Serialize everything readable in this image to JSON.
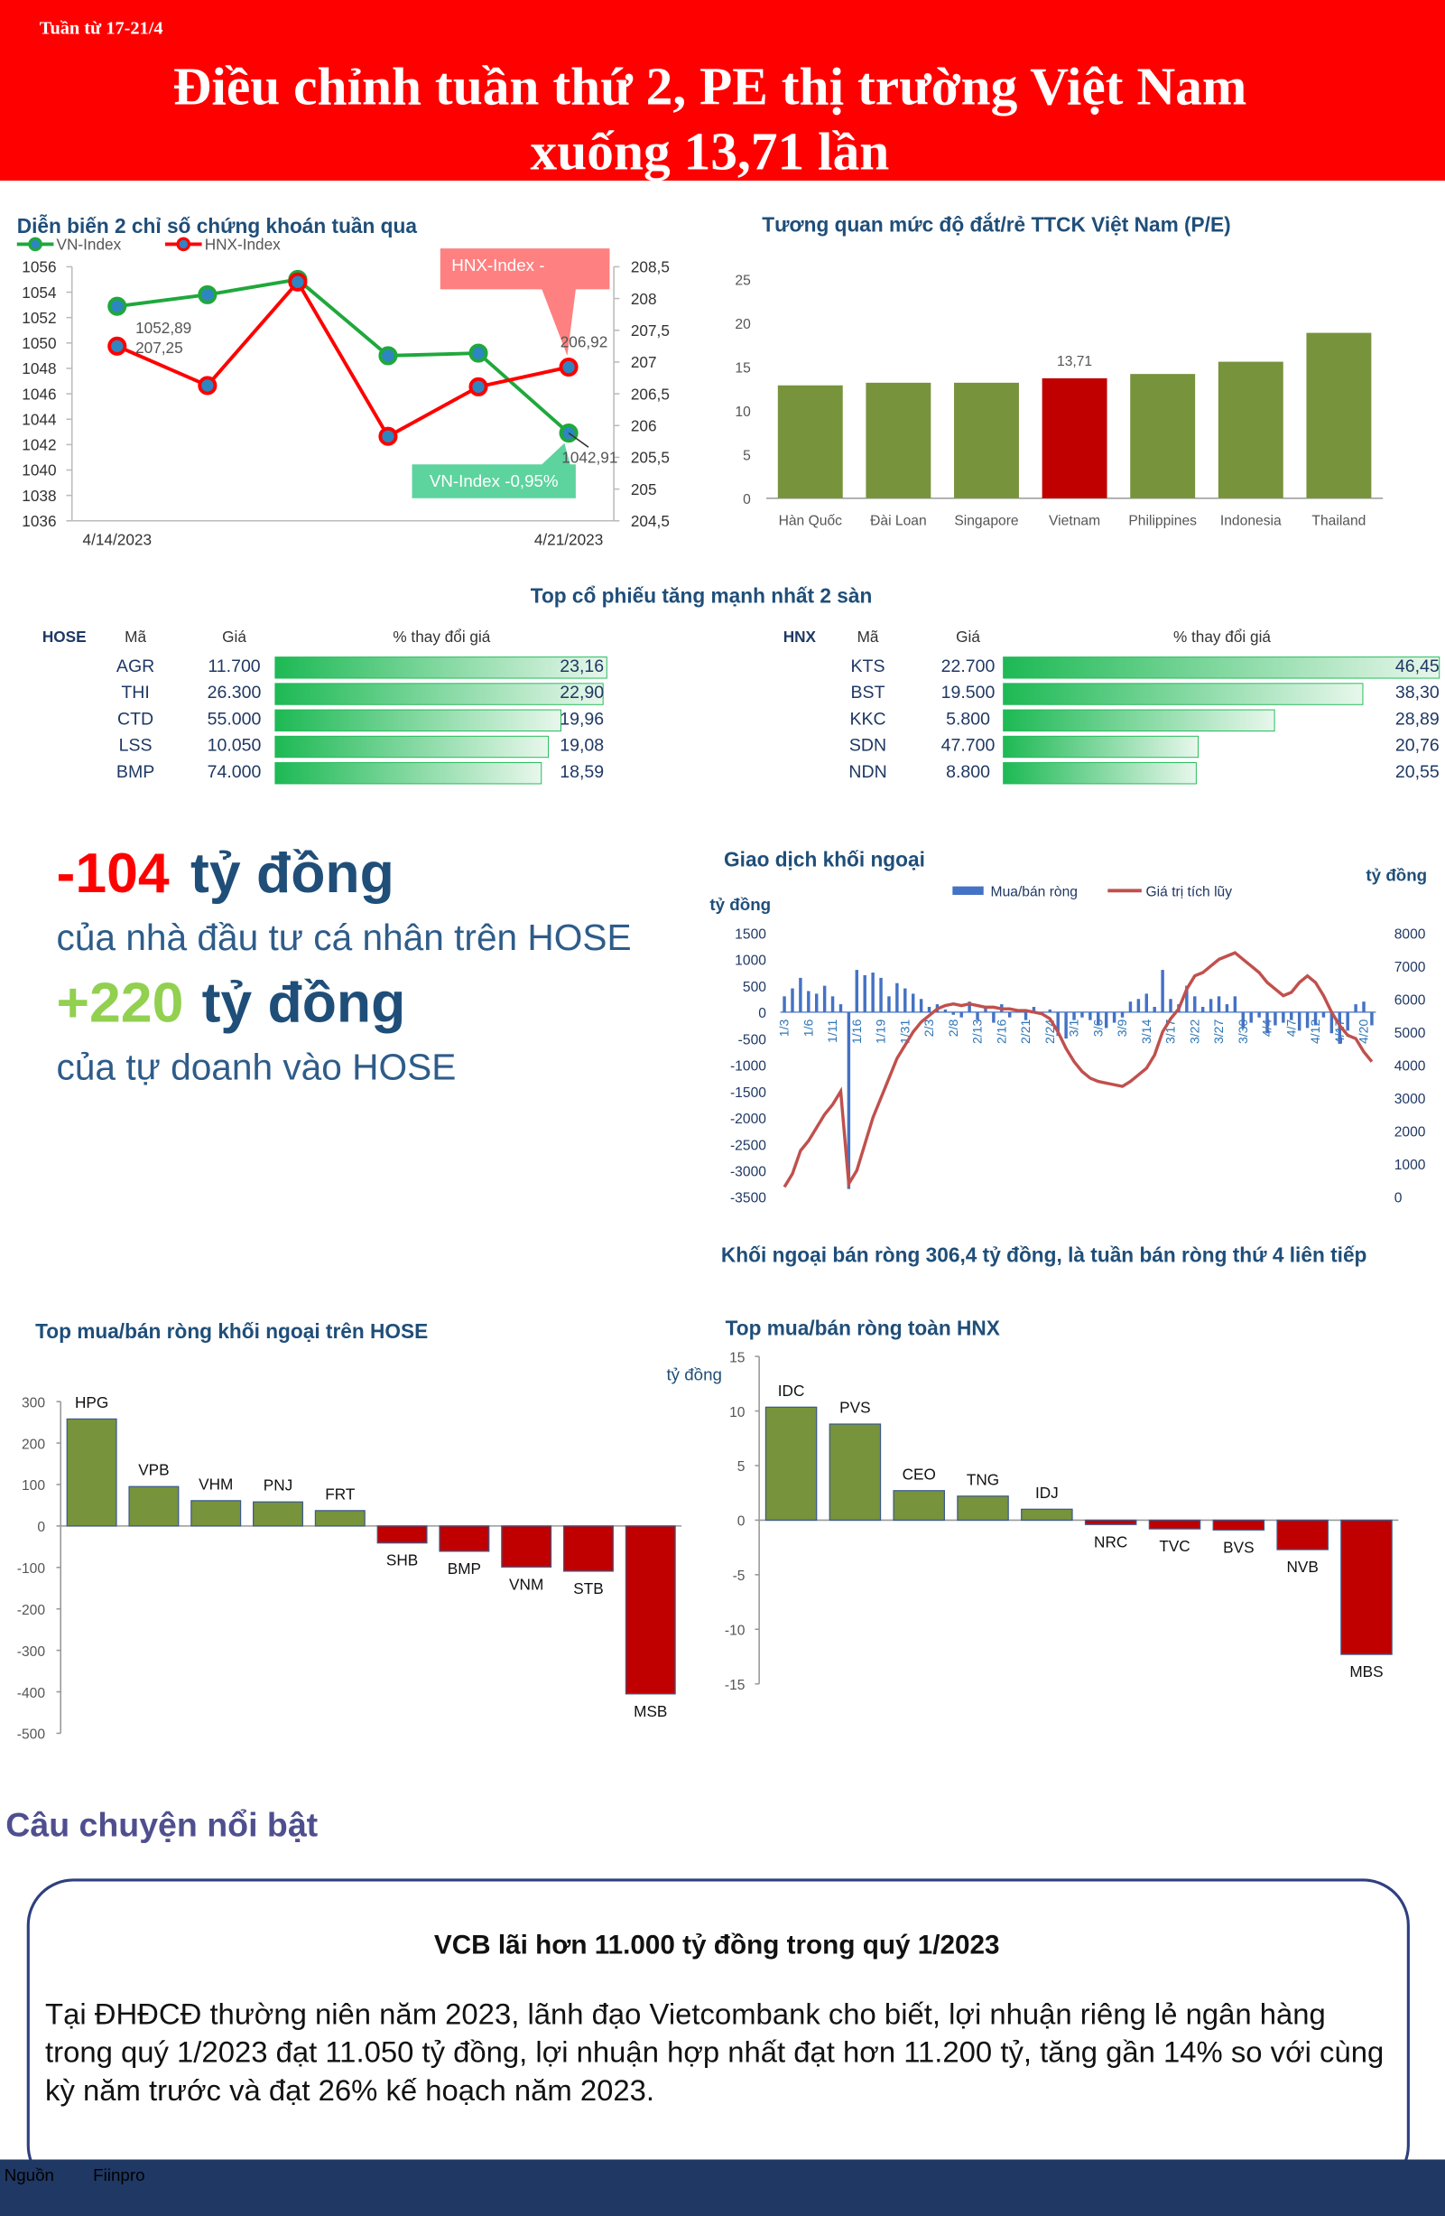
{
  "header": {
    "week": "Tuần từ 17-21/4",
    "title_lines": [
      "Điều chỉnh tuần thứ 2, PE thị trường Việt Nam",
      "xuống 13,71 lần"
    ]
  },
  "tables_title": "Top cổ phiếu tăng mạnh nhất 2 sàn",
  "highlights": [
    {
      "figure": "-104",
      "unit": "tỷ đồng",
      "text": "của nhà đầu tư cá nhân trên HOSE"
    },
    {
      "figure": "+220",
      "unit": "tỷ đồng",
      "text": "của tự doanh vào HOSE"
    }
  ],
  "chart_data": [
    {
      "type": "line",
      "title": "Diễn biến 2 chỉ số chứng khoán tuần qua",
      "categories": [
        "4/14/2023",
        null,
        null,
        null,
        null,
        "4/21/2023"
      ],
      "series": [
        {
          "name": "VN-Index",
          "color": "#1fa83c",
          "values": [
            1052.89,
            1053.8,
            1055.0,
            1049.0,
            1049.2,
            1042.91
          ],
          "value_labels": [
            "1052,89",
            null,
            null,
            null,
            null,
            "1042,91"
          ]
        },
        {
          "name": "HNX-Index",
          "color": "#ff0000",
          "axis": "y2",
          "values": [
            207.25,
            206.63,
            208.26,
            205.83,
            206.61,
            206.92
          ],
          "value_labels": [
            "207,25",
            null,
            null,
            null,
            null,
            "206,92"
          ]
        }
      ],
      "ylim": [
        1036,
        1056
      ],
      "yticks": [
        1036,
        1038,
        1040,
        1042,
        1044,
        1046,
        1048,
        1050,
        1052,
        1054,
        1056
      ],
      "y2lim": [
        204.5,
        208.5
      ],
      "y2ticks": [
        {
          "value": 204.5,
          "label": "204,5"
        },
        {
          "value": 205,
          "label": "205"
        },
        {
          "value": 205.5,
          "label": "205,5"
        },
        {
          "value": 206,
          "label": "206"
        },
        {
          "value": 206.5,
          "label": "206,5"
        },
        {
          "value": 207,
          "label": "207"
        },
        {
          "value": 207.5,
          "label": "207,5"
        },
        {
          "value": 208,
          "label": "208"
        },
        {
          "value": 208.5,
          "label": "208,5"
        }
      ],
      "annotations": [
        "HNX-Index -",
        "VN-Index -0,95%"
      ],
      "legend": "top-left"
    },
    {
      "type": "bar",
      "title": "Tương quan mức độ đắt/rẻ TTCK Việt Nam (P/E)",
      "categories": [
        "Hàn Quốc",
        "Đài Loan",
        "Singapore",
        "Vietnam",
        "Philippines",
        "Indonesia",
        "Thailand"
      ],
      "values": [
        12.9,
        13.2,
        13.2,
        13.71,
        14.2,
        15.6,
        18.9
      ],
      "value_labels": [
        null,
        null,
        null,
        "13,71",
        null,
        null,
        null
      ],
      "colors": [
        "#77933c",
        "#77933c",
        "#77933c",
        "#c00000",
        "#77933c",
        "#77933c",
        "#77933c"
      ],
      "ylim": [
        0,
        25
      ],
      "yticks": [
        0,
        5,
        10,
        15,
        20,
        25
      ]
    },
    {
      "type": "hbar",
      "exchange": "HOSE",
      "column_labels": [
        "Mã",
        "Giá",
        "% thay đổi giá"
      ],
      "categories": [
        "AGR",
        "THI",
        "CTD",
        "LSS",
        "BMP"
      ],
      "prices": [
        "11.700",
        "26.300",
        "55.000",
        "10.050",
        "74.000"
      ],
      "values": [
        23.16,
        22.9,
        19.96,
        19.08,
        18.59
      ],
      "value_labels": [
        "23,16",
        "22,90",
        "19,96",
        "19,08",
        "18,59"
      ],
      "color": "#1db954",
      "xlim": [
        0,
        23.16
      ]
    },
    {
      "type": "hbar",
      "exchange": "HNX",
      "column_labels": [
        "Mã",
        "Giá",
        "% thay đổi giá"
      ],
      "categories": [
        "KTS",
        "BST",
        "KKC",
        "SDN",
        "NDN"
      ],
      "prices": [
        "22.700",
        "19.500",
        "5.800",
        "47.700",
        "8.800"
      ],
      "values": [
        46.45,
        38.3,
        28.89,
        20.76,
        20.55
      ],
      "value_labels": [
        "46,45",
        "38,30",
        "28,89",
        "20,76",
        "20,55"
      ],
      "color": "#1db954",
      "xlim": [
        0,
        46.45
      ]
    },
    {
      "type": "bar_line",
      "title": "Giao dịch khối ngoại",
      "y_label": "tỷ đồng",
      "y2_label": "tỷ đồng",
      "caption": "Khối ngoại bán ròng 306,4 tỷ đồng, là tuần bán ròng thứ 4 liên tiếp",
      "categories": [
        "1/3",
        null,
        null,
        "1/6",
        null,
        null,
        "1/11",
        null,
        null,
        "1/16",
        null,
        null,
        "1/19",
        null,
        null,
        "1/31",
        null,
        null,
        "2/3",
        null,
        null,
        "2/8",
        null,
        null,
        "2/13",
        null,
        null,
        "2/16",
        null,
        null,
        "2/21",
        null,
        null,
        "2/24",
        null,
        null,
        "3/1",
        null,
        null,
        "3/6",
        null,
        null,
        "3/9",
        null,
        null,
        "3/14",
        null,
        null,
        "3/17",
        null,
        null,
        "3/22",
        null,
        null,
        "3/27",
        null,
        null,
        "3/30",
        null,
        null,
        "4/4",
        null,
        null,
        "4/7",
        null,
        null,
        "4/12",
        null,
        null,
        "4/17",
        null,
        null,
        "4/20",
        null
      ],
      "series": [
        {
          "name": "Mua/bán ròng",
          "color": "#4472c4",
          "values": [
            300,
            450,
            650,
            400,
            350,
            500,
            300,
            150,
            -3350,
            800,
            700,
            750,
            650,
            300,
            550,
            450,
            350,
            250,
            100,
            150,
            50,
            -50,
            -100,
            200,
            -150,
            100,
            -200,
            150,
            -100,
            50,
            -150,
            100,
            -50,
            50,
            -450,
            -500,
            -150,
            -100,
            -150,
            -250,
            -300,
            -200,
            -100,
            200,
            250,
            350,
            100,
            800,
            250,
            150,
            500,
            300,
            100,
            250,
            300,
            150,
            300,
            -300,
            -200,
            -100,
            -400,
            -250,
            -200,
            -150,
            -350,
            -300,
            -250,
            -100,
            -400,
            -600,
            -350,
            150,
            200,
            -250
          ]
        },
        {
          "name": "Giá trị tích lũy",
          "color": "#c0504d",
          "axis": "y2",
          "values": [
            300,
            700,
            1400,
            1700,
            2100,
            2500,
            2800,
            3200,
            400,
            800,
            1600,
            2400,
            3000,
            3600,
            4200,
            4600,
            5000,
            5300,
            5500,
            5700,
            5800,
            5850,
            5800,
            5850,
            5800,
            5750,
            5750,
            5700,
            5700,
            5650,
            5650,
            5600,
            5550,
            5400,
            5000,
            4500,
            4100,
            3800,
            3600,
            3500,
            3450,
            3400,
            3350,
            3500,
            3700,
            3900,
            4300,
            5000,
            5400,
            5700,
            6300,
            6700,
            6800,
            7000,
            7200,
            7300,
            7400,
            7200,
            7000,
            6800,
            6500,
            6300,
            6100,
            6200,
            6500,
            6700,
            6500,
            6100,
            5600,
            5200,
            4900,
            4800,
            4400,
            4100
          ]
        }
      ],
      "ylim": [
        -3500,
        1500
      ],
      "yticks": [
        -3500,
        -3000,
        -2500,
        -2000,
        -1500,
        -1000,
        -500,
        0,
        500,
        1000,
        1500
      ],
      "y2lim": [
        0,
        8000
      ],
      "y2ticks": [
        0,
        1000,
        2000,
        3000,
        4000,
        5000,
        6000,
        7000,
        8000
      ],
      "legend": "top"
    },
    {
      "type": "bar",
      "title": "Top mua/bán ròng khối ngoại trên HOSE",
      "y_label": "tỷ đồng",
      "categories": [
        "HPG",
        "VPB",
        "VHM",
        "PNJ",
        "FRT",
        "SHB",
        "BMP",
        "VNM",
        "STB",
        "MSB"
      ],
      "values": [
        258,
        95,
        61,
        58,
        37,
        -41,
        -61,
        -99,
        -109,
        -405
      ],
      "colors": [
        "#77933c",
        "#77933c",
        "#77933c",
        "#77933c",
        "#77933c",
        "#c00000",
        "#c00000",
        "#c00000",
        "#c00000",
        "#c00000"
      ],
      "ylim": [
        -500,
        300
      ],
      "yticks": [
        -500,
        -400,
        -300,
        -200,
        -100,
        0,
        100,
        200,
        300
      ]
    },
    {
      "type": "bar",
      "title": "Top mua/bán ròng toàn HNX",
      "categories": [
        "IDC",
        "PVS",
        "CEO",
        "TNG",
        "IDJ",
        "NRC",
        "TVC",
        "BVS",
        "NVB",
        "MBS"
      ],
      "values": [
        10.35,
        8.8,
        2.7,
        2.2,
        1.0,
        -0.4,
        -0.8,
        -0.9,
        -2.7,
        -12.3
      ],
      "colors": [
        "#77933c",
        "#77933c",
        "#77933c",
        "#77933c",
        "#77933c",
        "#c00000",
        "#c00000",
        "#c00000",
        "#c00000",
        "#c00000"
      ],
      "ylim": [
        -15,
        15
      ],
      "yticks": [
        -15,
        -10,
        -5,
        0,
        5,
        10,
        15
      ]
    }
  ],
  "story": {
    "heading": "Câu chuyện nổi bật",
    "title": "VCB lãi hơn 11.000 tỷ đồng trong quý 1/2023",
    "body": "Tại ĐHĐCĐ thường niên năm 2023, lãnh đạo Vietcombank cho biết, lợi nhuận riêng lẻ ngân hàng trong quý 1/2023 đạt 11.050 tỷ đồng, lợi nhuận hợp nhất đạt hơn 11.200 tỷ, tăng gần 14% so với cùng kỳ năm trước và đạt 26% kế hoạch năm 2023."
  },
  "footer": {
    "source_label": "Nguồn",
    "source": "Fiinpro"
  }
}
